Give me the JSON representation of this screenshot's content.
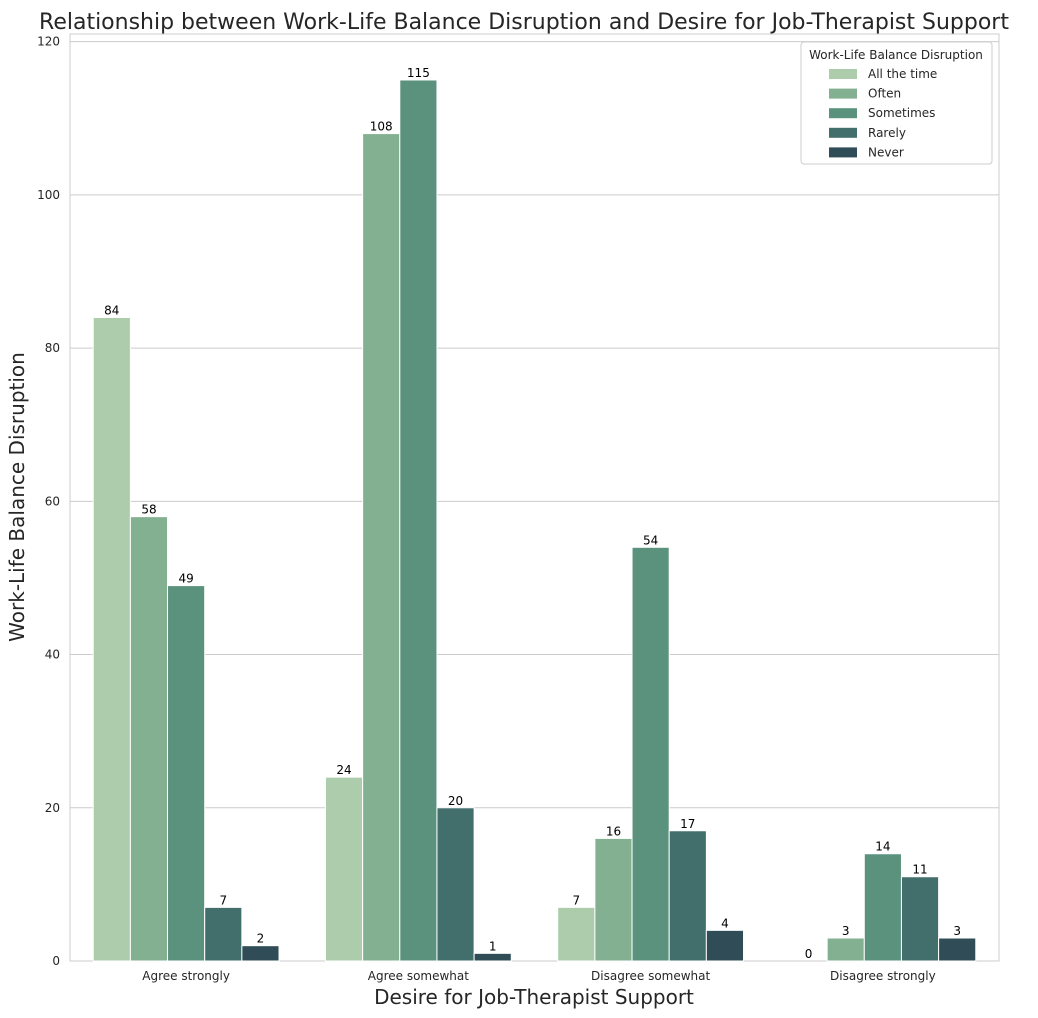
{
  "chart_data": {
    "type": "bar",
    "title": "Relationship between Work-Life Balance Disruption and Desire for Job-Therapist Support",
    "xlabel": "Desire for Job-Therapist Support",
    "ylabel": "Work-Life Balance Disruption",
    "ylim": [
      0,
      121
    ],
    "yticks": [
      0,
      20,
      40,
      60,
      80,
      100,
      120
    ],
    "grid": true,
    "categories": [
      "Agree strongly",
      "Agree somewhat",
      "Disagree somewhat",
      "Disagree strongly"
    ],
    "legend": {
      "title": "Work-Life Balance Disruption",
      "placement": "top-right"
    },
    "series": [
      {
        "name": "All the time",
        "color": "#acccab",
        "values": [
          84,
          24,
          7,
          0
        ]
      },
      {
        "name": "Often",
        "color": "#83b090",
        "values": [
          58,
          108,
          16,
          3
        ]
      },
      {
        "name": "Sometimes",
        "color": "#5b927d",
        "values": [
          49,
          115,
          54,
          14
        ]
      },
      {
        "name": "Rarely",
        "color": "#426f6c",
        "values": [
          7,
          20,
          17,
          11
        ]
      },
      {
        "name": "Never",
        "color": "#2f4c57",
        "values": [
          2,
          1,
          4,
          3
        ]
      }
    ]
  }
}
